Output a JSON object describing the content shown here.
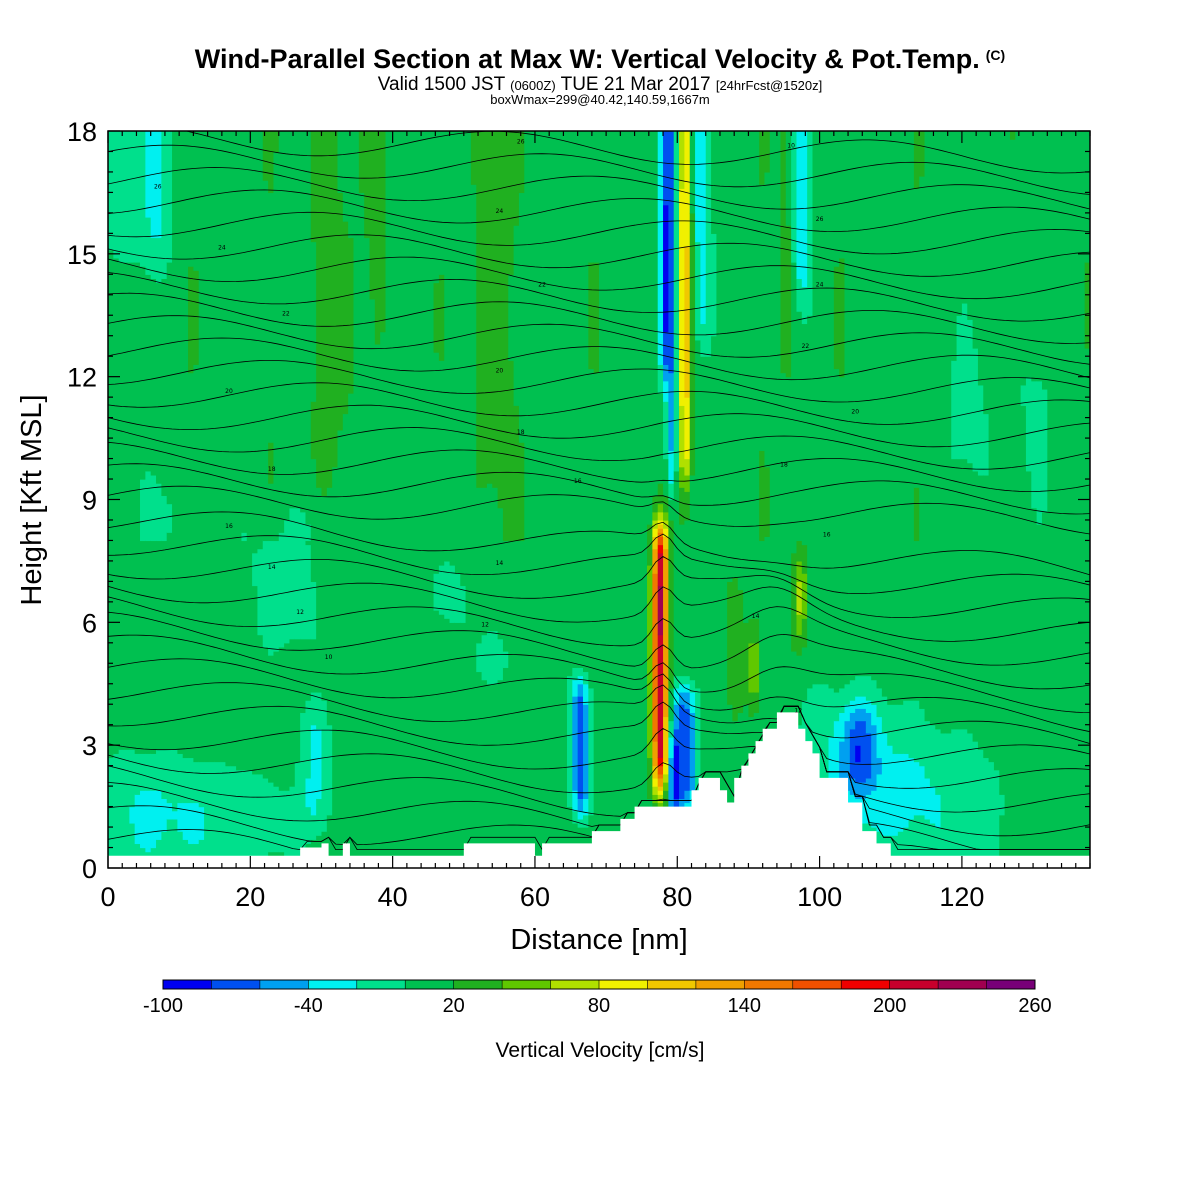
{
  "header": {
    "title": "Wind-Parallel Section at Max W: Vertical Velocity & Pot.Temp.",
    "copyright": "(C)",
    "valid_time": "Valid 1500 JST",
    "utc_time": "(0600Z)",
    "date": "TUE 21 Mar 2017",
    "forecast": "[24hrFcst@1520z]",
    "box_wmax": "boxWmax=299@40.42,140.59,1667m"
  },
  "chart_data": {
    "type": "heatmap",
    "xlabel": "Distance [nm]",
    "ylabel": "Height [Kft MSL]",
    "xlim": [
      0,
      138
    ],
    "ylim": [
      0,
      18
    ],
    "x_ticks": [
      "0",
      "20",
      "40",
      "60",
      "80",
      "100",
      "120"
    ],
    "y_ticks": [
      "0",
      "3",
      "6",
      "9",
      "12",
      "15",
      "18"
    ],
    "x_tick_values": [
      0,
      20,
      40,
      60,
      80,
      100,
      120
    ],
    "y_tick_values": [
      0,
      3,
      6,
      9,
      12,
      15,
      18
    ],
    "colorbar": {
      "title": "Vertical Velocity [cm/s]",
      "labels": [
        "-100",
        "-40",
        "20",
        "80",
        "140",
        "200",
        "260"
      ],
      "label_values": [
        -100,
        -40,
        20,
        80,
        140,
        200,
        260
      ],
      "min": -100,
      "max": 260,
      "step": 20,
      "colors": [
        "#0000f0",
        "#0050f0",
        "#00a0f0",
        "#00f0f0",
        "#00e08c",
        "#00c050",
        "#20b020",
        "#60c800",
        "#b0e000",
        "#f0f000",
        "#f0c800",
        "#f0a000",
        "#f07800",
        "#f05000",
        "#f00000",
        "#c8002c",
        "#a00050",
        "#780078"
      ]
    },
    "max_w": {
      "value_cm_s": 299,
      "lat": 40.42,
      "lon": 140.59,
      "height_m": 1667
    },
    "updraft_core": {
      "x_nm": 77.5,
      "height_kft_range": [
        2.0,
        8.5
      ],
      "peak_cm_s": 200
    },
    "terrain": {
      "x_nm": [
        0,
        25,
        27,
        30,
        31,
        33,
        34,
        36,
        50,
        58,
        60,
        61,
        62,
        66,
        68,
        70,
        72,
        74,
        76,
        80,
        82,
        83,
        84,
        86,
        87,
        88,
        89,
        90,
        91,
        92,
        93,
        94,
        95,
        97,
        98,
        99,
        100,
        102,
        104,
        106,
        108,
        110,
        122,
        124,
        138
      ],
      "height_kft": [
        0.3,
        0.3,
        0.5,
        0.6,
        0.3,
        0.6,
        0.3,
        0.3,
        0.6,
        0.6,
        0.3,
        0.6,
        0.6,
        0.6,
        0.9,
        0.9,
        1.2,
        1.5,
        1.5,
        1.5,
        1.9,
        2.2,
        2.2,
        1.9,
        1.6,
        2.2,
        2.5,
        2.8,
        3.1,
        3.4,
        3.4,
        3.8,
        3.8,
        3.4,
        3.1,
        2.8,
        2.2,
        2.2,
        1.6,
        0.9,
        0.6,
        0.3,
        0.3,
        0.3,
        0.3
      ]
    },
    "isentrope_label_values": [
      "26",
      "24",
      "22",
      "20",
      "18",
      "16",
      "14",
      "12",
      "10"
    ]
  }
}
